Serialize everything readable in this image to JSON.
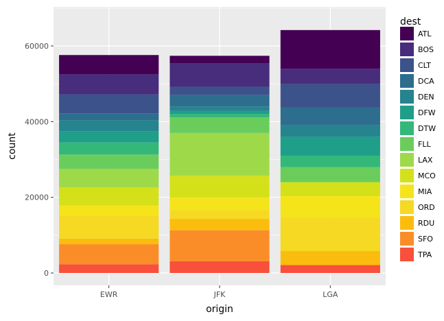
{
  "chart_data": {
    "type": "bar",
    "stacked": true,
    "xlabel": "origin",
    "ylabel": "count",
    "categories": [
      "EWR",
      "JFK",
      "LGA"
    ],
    "y_ticks": [
      0,
      20000,
      40000,
      60000
    ],
    "y_tick_labels": [
      "0",
      "20000",
      "40000",
      "60000"
    ],
    "ylim": [
      0,
      69000
    ],
    "grid": true,
    "legend": {
      "title": "dest",
      "placement": "right",
      "items": [
        "ATL",
        "BOS",
        "CLT",
        "DCA",
        "DEN",
        "DFW",
        "DTW",
        "FLL",
        "LAX",
        "MCO",
        "MIA",
        "ORD",
        "RDU",
        "SFO",
        "TPA"
      ]
    },
    "series": [
      {
        "name": "TPA",
        "color": "#f8503a",
        "values": [
          2300,
          3100,
          2100
        ]
      },
      {
        "name": "SFO",
        "color": "#fb8d29",
        "values": [
          5300,
          8200,
          0
        ]
      },
      {
        "name": "RDU",
        "color": "#fbbd0d",
        "values": [
          1500,
          3000,
          3700
        ]
      },
      {
        "name": "ORD",
        "color": "#f6d923",
        "values": [
          6100,
          2300,
          8800
        ]
      },
      {
        "name": "MIA",
        "color": "#f6e41b",
        "values": [
          2600,
          3300,
          5700
        ]
      },
      {
        "name": "MCO",
        "color": "#d4e11a",
        "values": [
          4800,
          5800,
          3700
        ]
      },
      {
        "name": "LAX",
        "color": "#9ed94a",
        "values": [
          4900,
          11300,
          0
        ]
      },
      {
        "name": "FLL",
        "color": "#6acd5b",
        "values": [
          3800,
          4100,
          4000
        ]
      },
      {
        "name": "DTW",
        "color": "#33b879",
        "values": [
          3200,
          900,
          3000
        ]
      },
      {
        "name": "DFW",
        "color": "#1f9e89",
        "values": [
          3000,
          800,
          5000
        ]
      },
      {
        "name": "DEN",
        "color": "#25848e",
        "values": [
          2900,
          1200,
          3000
        ]
      },
      {
        "name": "DCA",
        "color": "#2d6d8e",
        "values": [
          1800,
          3000,
          4700
        ]
      },
      {
        "name": "CLT",
        "color": "#3b528b",
        "values": [
          5000,
          2200,
          6200
        ]
      },
      {
        "name": "BOS",
        "color": "#472d7b",
        "values": [
          5300,
          6200,
          4100
        ]
      },
      {
        "name": "ATL",
        "color": "#440154",
        "values": [
          5100,
          2000,
          10200
        ]
      }
    ]
  }
}
